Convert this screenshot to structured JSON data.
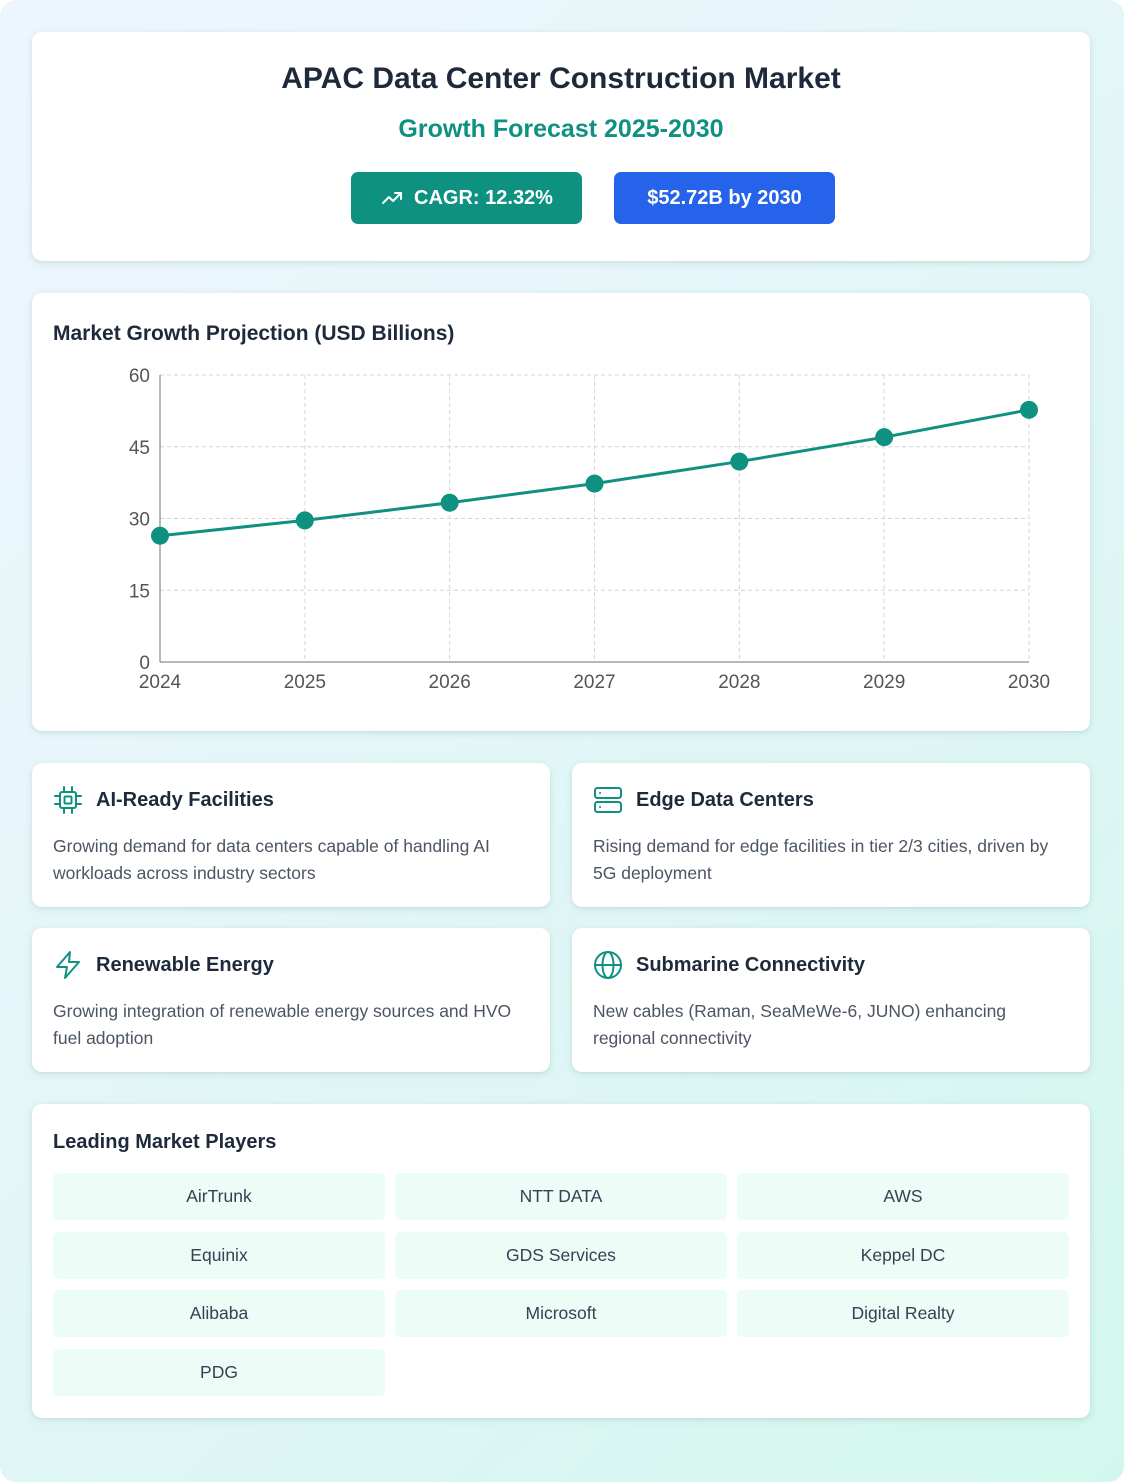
{
  "header": {
    "title": "APAC Data Center Construction Market",
    "subtitle": "Growth Forecast 2025-2030",
    "cagr_badge": "CAGR: 12.32%",
    "value_badge": "$52.72B by 2030",
    "cagr_icon": "trending-up-icon"
  },
  "chart": {
    "title": "Market Growth Projection (USD Billions)"
  },
  "chart_data": {
    "type": "line",
    "x": [
      "2024",
      "2025",
      "2026",
      "2027",
      "2028",
      "2029",
      "2030"
    ],
    "series": [
      {
        "values": [
          26.4,
          29.6,
          33.3,
          37.3,
          41.9,
          47.0,
          52.72
        ],
        "color": "#0f9181"
      }
    ],
    "ylim": [
      0,
      60
    ],
    "yticks": [
      0,
      15,
      30,
      45,
      60
    ],
    "grid": true,
    "legend": "none"
  },
  "features": [
    {
      "icon": "cpu-chip-icon",
      "title": "AI-Ready Facilities",
      "desc": "Growing demand for data centers capable of handling AI workloads across industry sectors"
    },
    {
      "icon": "server-icon",
      "title": "Edge Data Centers",
      "desc": "Rising demand for edge facilities in tier 2/3 cities, driven by 5G deployment"
    },
    {
      "icon": "lightning-bolt-icon",
      "title": "Renewable Energy",
      "desc": "Growing integration of renewable energy sources and HVO fuel adoption"
    },
    {
      "icon": "globe-icon",
      "title": "Submarine Connectivity",
      "desc": "New cables (Raman, SeaMeWe-6, JUNO) enhancing regional connectivity"
    }
  ],
  "players": {
    "title": "Leading Market Players",
    "items": [
      "AirTrunk",
      "NTT DATA",
      "AWS",
      "Equinix",
      "GDS Services",
      "Keppel DC",
      "Alibaba",
      "Microsoft",
      "Digital Realty",
      "PDG"
    ]
  },
  "colors": {
    "accent": "#0f9181",
    "blue": "#2563eb"
  }
}
